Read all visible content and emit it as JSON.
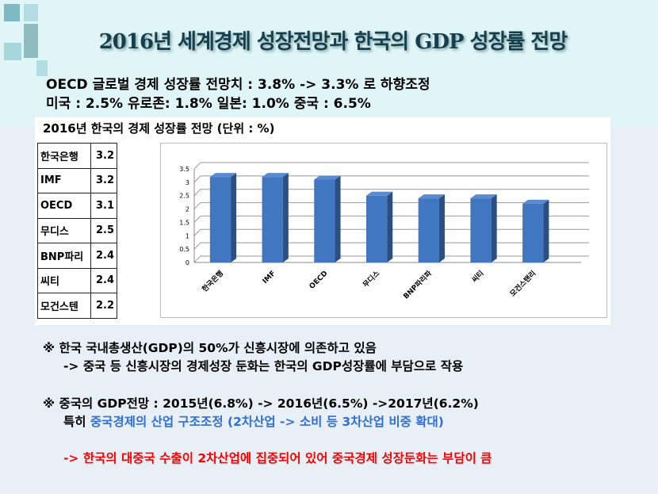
{
  "title": "2016년 세계경제 성장전망과  한국의 GDP 성장률 전망",
  "summary": {
    "line1": "OECD 글로벌 경제 성장률 전망치 : 3.8% -> 3.3% 로 하향조정",
    "line2": "미국 : 2.5%  유로존: 1.8% 일본: 1.0%  중국 : 6.5%"
  },
  "panel_title": "2016년 한국의 경제 성장률 전망 (단위 : %)",
  "table": [
    {
      "name": "한국은행",
      "value": "3.2"
    },
    {
      "name": "IMF",
      "value": "3.2"
    },
    {
      "name": "OECD",
      "value": "3.1"
    },
    {
      "name": "무디스",
      "value": "2.5"
    },
    {
      "name": "BNP파리",
      "value": "2.4"
    },
    {
      "name": "씨티",
      "value": "2.4"
    },
    {
      "name": "모건스텐",
      "value": "2.2"
    }
  ],
  "chart_data": {
    "type": "bar",
    "title": "",
    "xlabel": "",
    "ylabel": "",
    "categories": [
      "한국은행",
      "IMF",
      "OECD",
      "무디스",
      "BNP파리파",
      "씨티",
      "모건스탠리"
    ],
    "values": [
      3.2,
      3.2,
      3.1,
      2.5,
      2.4,
      2.4,
      2.2
    ],
    "ylim": [
      0,
      3.5
    ],
    "yticks": [
      "0",
      "0.5",
      "1",
      "1.5",
      "2",
      "2.5",
      "3",
      "3.5"
    ],
    "grid": true,
    "bar_color": "#4177c0"
  },
  "notes": {
    "bullet": "※",
    "n1a": "한국 국내총생산(GDP)의 50%가 신흥시장에 의존하고 있음",
    "n1b": "-> 중국 등 신흥시장의 경제성장 둔화는 한국의 GDP성장률에 부담으로 작용",
    "n2a": "중국의 GDP전망 : 2015년(6.8%) -> 2016년(6.5%) ->2017년(6.2%)",
    "n2b_prefix": "특히 ",
    "n2b_blue": "중국경제의 산업 구조조정 (2차산업 -> 소비 등 3차산업 비중 확대)",
    "n3": "-> 한국의 대중국 수출이 2차산업에 집중되어 있어 중국경제 성장둔화는 부담이 큼"
  }
}
